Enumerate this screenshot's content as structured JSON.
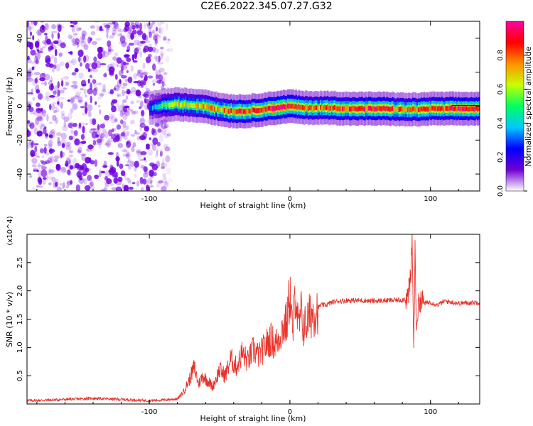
{
  "title": "C2E6.2022.345.07.27.G32",
  "colorbar": {
    "label": "Normalized spectral amplitude",
    "ticks": [
      "0.0",
      "0.2",
      "0.4",
      "0.6",
      "0.8"
    ],
    "tick_values": [
      0.0,
      0.2,
      0.4,
      0.6,
      0.8
    ],
    "range": [
      0,
      1
    ],
    "colormap": [
      "#ffffff",
      "#7000d0",
      "#0000ff",
      "#00c8ff",
      "#00ff60",
      "#c8ff00",
      "#ff9000",
      "#ff0000",
      "#ff00a0"
    ]
  },
  "chart_data": [
    {
      "type": "heatmap",
      "title": "",
      "xlabel": "Height of straight line (km)",
      "ylabel": "Frequency (Hz)",
      "xlim": [
        -187,
        135
      ],
      "ylim": [
        -50,
        50
      ],
      "xticks": [
        -100,
        0,
        100
      ],
      "yticks": [
        -40,
        -20,
        0,
        20,
        40
      ],
      "noise_region_x": [
        -187,
        -85
      ],
      "noise_color": "#7000e0",
      "signal_band": {
        "x": [
          -100,
          -90,
          -80,
          -70,
          -60,
          -50,
          -40,
          -30,
          -20,
          -10,
          0,
          10,
          20,
          30,
          40,
          50,
          60,
          70,
          80,
          90,
          100,
          110,
          120,
          135
        ],
        "center_hz": [
          -1.5,
          0.5,
          1,
          0.5,
          0,
          -2,
          -3,
          -3,
          -2,
          -1,
          0,
          -1,
          -1,
          -1,
          -1.5,
          -1.5,
          -1.5,
          -1.5,
          -2,
          -2,
          -1.5,
          -1.5,
          -1.5,
          -1.5
        ],
        "peak_amplitude": [
          0.3,
          0.5,
          0.7,
          0.6,
          0.75,
          0.7,
          0.85,
          0.85,
          0.9,
          0.95,
          0.9,
          0.8,
          0.75,
          0.85,
          0.85,
          0.85,
          0.85,
          0.85,
          0.75,
          0.8,
          0.85,
          0.85,
          0.9,
          0.9
        ]
      }
    },
    {
      "type": "line",
      "title": "",
      "xlabel": "Height of straight line (km)",
      "ylabel": "SNR (10 * v/v)",
      "y_multiplier": "(x10^4)",
      "xlim": [
        -187,
        135
      ],
      "ylim": [
        0,
        30000
      ],
      "xticks": [
        -100,
        0,
        100
      ],
      "yticks": [
        5000,
        10000,
        15000,
        20000,
        25000
      ],
      "ytick_labels": [
        "0.5",
        "1.0",
        "1.5",
        "2.0",
        "2.5"
      ],
      "color": "#e8332a",
      "series": [
        {
          "x": [
            -187,
            -170,
            -150,
            -140,
            -120,
            -100,
            -90,
            -80,
            -76,
            -72,
            -68,
            -65,
            -62,
            -58,
            -55,
            -50,
            -46,
            -42,
            -38,
            -34,
            -30,
            -26,
            -22,
            -18,
            -14,
            -10,
            -6,
            -2,
            0,
            2,
            4,
            6,
            8,
            10,
            14,
            18,
            22,
            26,
            30,
            35,
            40,
            50,
            60,
            70,
            80,
            84,
            86,
            87,
            88,
            89,
            90,
            92,
            96,
            100,
            105,
            110,
            120,
            135
          ],
          "y": [
            600,
            700,
            900,
            1000,
            800,
            600,
            700,
            900,
            2000,
            4000,
            6500,
            3500,
            5000,
            4000,
            3000,
            6000,
            5000,
            8000,
            6500,
            9000,
            7500,
            9500,
            8500,
            10000,
            11500,
            10500,
            13000,
            14500,
            20000,
            12000,
            21000,
            13000,
            16000,
            13500,
            15500,
            16500,
            17500,
            17500,
            18000,
            18200,
            18300,
            18300,
            18200,
            18300,
            18400,
            19000,
            22000,
            30000,
            9000,
            26000,
            14000,
            18500,
            17800,
            18000,
            17500,
            18200,
            17800,
            18000
          ]
        }
      ]
    }
  ]
}
